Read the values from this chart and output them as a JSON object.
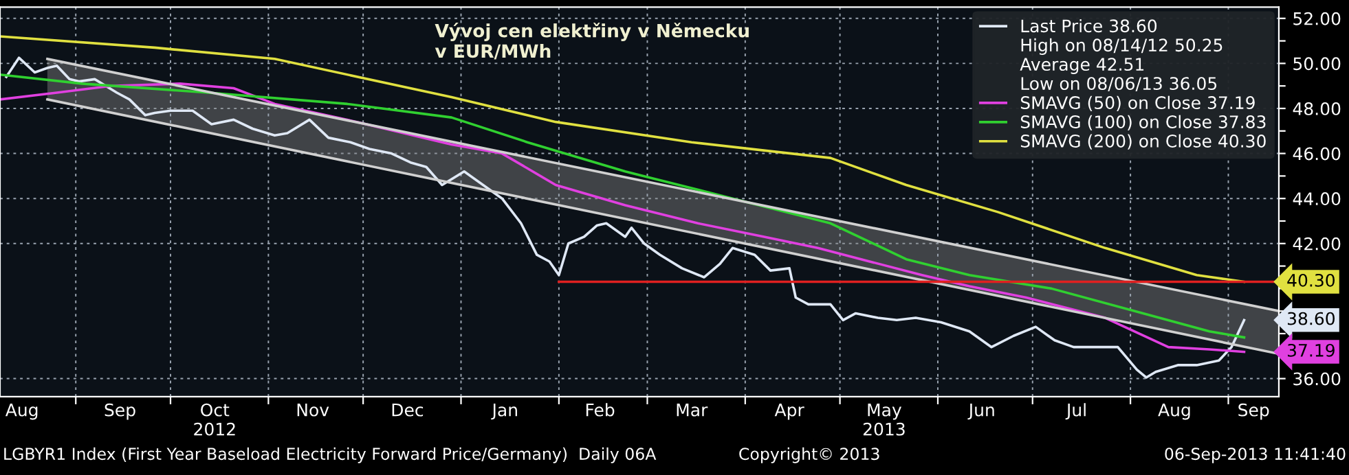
{
  "chart_data": {
    "type": "line",
    "title": "Vývoj cen elektřiny v Německu\nv EUR/MWh",
    "series": [
      {
        "name": "Last Price 38.60",
        "color": "#dfe8f5",
        "x": [
          "2012-08-10",
          "2012-08-14",
          "2012-08-19",
          "2012-08-23",
          "2012-08-26",
          "2012-08-30",
          "2012-09-02",
          "2012-09-07",
          "2012-09-14",
          "2012-09-18",
          "2012-09-23",
          "2012-09-26",
          "2012-10-01",
          "2012-10-08",
          "2012-10-14",
          "2012-10-21",
          "2012-10-27",
          "2012-11-03",
          "2012-11-07",
          "2012-11-14",
          "2012-11-20",
          "2012-11-27",
          "2012-12-03",
          "2012-12-10",
          "2012-12-16",
          "2012-12-21",
          "2012-12-26",
          "2013-01-02",
          "2013-01-07",
          "2013-01-14",
          "2013-01-20",
          "2013-01-25",
          "2013-01-29",
          "2013-02-01",
          "2013-02-04",
          "2013-02-09",
          "2013-02-13",
          "2013-02-16",
          "2013-02-22",
          "2013-02-24",
          "2013-02-28",
          "2013-03-05",
          "2013-03-12",
          "2013-03-19",
          "2013-03-24",
          "2013-03-28",
          "2013-04-04",
          "2013-04-09",
          "2013-04-15",
          "2013-04-17",
          "2013-04-21",
          "2013-04-28",
          "2013-05-02",
          "2013-05-06",
          "2013-05-13",
          "2013-05-19",
          "2013-05-25",
          "2013-06-02",
          "2013-06-11",
          "2013-06-18",
          "2013-06-25",
          "2013-07-02",
          "2013-07-08",
          "2013-07-14",
          "2013-07-28",
          "2013-08-03",
          "2013-08-06",
          "2013-08-09",
          "2013-08-16",
          "2013-08-22",
          "2013-08-29",
          "2013-09-02",
          "2013-09-06"
        ],
        "values": [
          49.4,
          50.25,
          49.6,
          49.8,
          49.9,
          49.3,
          49.2,
          49.3,
          48.7,
          48.4,
          47.7,
          47.8,
          47.9,
          47.9,
          47.3,
          47.5,
          47.1,
          46.8,
          46.9,
          47.5,
          46.7,
          46.5,
          46.2,
          46.0,
          45.6,
          45.4,
          44.6,
          45.2,
          44.7,
          44.0,
          42.9,
          41.5,
          41.2,
          40.6,
          42.0,
          42.3,
          42.8,
          42.9,
          42.3,
          42.7,
          42.0,
          41.5,
          40.9,
          40.5,
          41.1,
          41.8,
          41.5,
          40.8,
          40.9,
          39.6,
          39.3,
          39.3,
          38.6,
          38.9,
          38.7,
          38.6,
          38.7,
          38.5,
          38.1,
          37.4,
          37.9,
          38.3,
          37.7,
          37.4,
          37.4,
          36.4,
          36.05,
          36.3,
          36.6,
          36.6,
          36.8,
          37.4,
          38.6
        ]
      },
      {
        "name": "SMAVG (50) on Close 37.19",
        "color": "#e040e0",
        "x": [
          "2012-08-08",
          "2012-08-26",
          "2012-09-12",
          "2012-10-04",
          "2012-10-21",
          "2012-11-03",
          "2012-11-29",
          "2012-12-29",
          "2013-01-14",
          "2013-01-31",
          "2013-02-22",
          "2013-03-17",
          "2013-04-07",
          "2013-04-24",
          "2013-05-27",
          "2013-06-11",
          "2013-06-29",
          "2013-07-24",
          "2013-08-13",
          "2013-08-26",
          "2013-09-06"
        ],
        "values": [
          48.4,
          48.7,
          49.0,
          49.1,
          48.9,
          48.2,
          47.4,
          46.4,
          46.0,
          44.6,
          43.7,
          42.9,
          42.3,
          41.8,
          40.6,
          40.1,
          39.6,
          38.7,
          37.4,
          37.3,
          37.19
        ]
      },
      {
        "name": "SMAVG (100) on Close 37.83",
        "color": "#30d030",
        "x": [
          "2012-08-08",
          "2012-09-03",
          "2012-10-13",
          "2012-11-26",
          "2012-12-29",
          "2013-01-22",
          "2013-02-22",
          "2013-03-28",
          "2013-04-28",
          "2013-05-22",
          "2013-06-11",
          "2013-07-07",
          "2013-08-05",
          "2013-08-26",
          "2013-09-06"
        ],
        "values": [
          49.5,
          49.1,
          48.7,
          48.2,
          47.6,
          46.5,
          45.2,
          44.0,
          42.9,
          41.3,
          40.6,
          40.0,
          38.9,
          38.1,
          37.83
        ]
      },
      {
        "name": "SMAVG (200) on Close 40.30",
        "color": "#e0e040",
        "x": [
          "2012-08-08",
          "2012-09-26",
          "2012-11-03",
          "2012-12-29",
          "2013-01-31",
          "2013-03-15",
          "2013-04-28",
          "2013-05-22",
          "2013-06-20",
          "2013-07-24",
          "2013-08-22",
          "2013-09-06"
        ],
        "values": [
          51.2,
          50.7,
          50.2,
          48.5,
          47.4,
          46.5,
          45.8,
          44.6,
          43.4,
          41.8,
          40.6,
          40.3
        ]
      },
      {
        "color": "#d0d0d0",
        "x": [
          "2012-08-23",
          "2013-09-17"
        ],
        "values": [
          null,
          null
        ],
        "lower": [
          48.4,
          37.1
        ],
        "upper": [
          50.2,
          39.0
        ]
      },
      {
        "color": "#e02020",
        "x": [
          "2013-02-01",
          "2013-09-17"
        ],
        "values": [
          40.3,
          40.3
        ]
      }
    ],
    "xlim": [
      "2012-08-08",
      "2013-09-17"
    ],
    "xticks": [
      {
        "value": "2012-09-01",
        "label": null
      },
      {
        "value": "2012-10-01",
        "label": null
      },
      {
        "value": "2012-11-01",
        "label": null
      },
      {
        "value": "2012-12-01",
        "label": null
      },
      {
        "value": "2013-01-01",
        "label": null
      },
      {
        "value": "2013-02-01",
        "label": null
      },
      {
        "value": "2013-03-01",
        "label": null
      },
      {
        "value": "2013-04-01",
        "label": null
      },
      {
        "value": "2013-05-01",
        "label": null
      },
      {
        "value": "2013-06-01",
        "label": null
      },
      {
        "value": "2013-07-01",
        "label": null
      },
      {
        "value": "2013-08-01",
        "label": null
      },
      {
        "value": "2013-09-01",
        "label": null
      },
      {
        "value": "2012-08-15",
        "label": "Aug"
      },
      {
        "value": "2012-09-15",
        "label": "Sep"
      },
      {
        "value": "2012-10-15",
        "label": "Oct\n2012"
      },
      {
        "value": "2012-11-15",
        "label": "Nov"
      },
      {
        "value": "2012-12-15",
        "label": "Dec"
      },
      {
        "value": "2013-01-15",
        "label": "Jan"
      },
      {
        "value": "2013-02-14",
        "label": "Feb"
      },
      {
        "value": "2013-03-15",
        "label": "Mar"
      },
      {
        "value": "2013-04-15",
        "label": "Apr"
      },
      {
        "value": "2013-05-15",
        "label": "May\n2013"
      },
      {
        "value": "2013-06-15",
        "label": "Jun"
      },
      {
        "value": "2013-07-15",
        "label": "Jul"
      },
      {
        "value": "2013-08-15",
        "label": "Aug"
      },
      {
        "value": "2013-09-09",
        "label": "Sep"
      }
    ],
    "ylim": [
      35.2,
      52.5
    ],
    "yticks": [
      {
        "value": 36,
        "label": "36.00"
      },
      {
        "value": 37,
        "label": null
      },
      {
        "value": 38,
        "label": null
      },
      {
        "value": 39,
        "label": null
      },
      {
        "value": 40,
        "label": null
      },
      {
        "value": 41,
        "label": null
      },
      {
        "value": 42,
        "label": "42.00"
      },
      {
        "value": 43,
        "label": null
      },
      {
        "value": 44,
        "label": "44.00"
      },
      {
        "value": 45,
        "label": null
      },
      {
        "value": 46,
        "label": "46.00"
      },
      {
        "value": 47,
        "label": null
      },
      {
        "value": 48,
        "label": "48.00"
      },
      {
        "value": 49,
        "label": null
      },
      {
        "value": 50,
        "label": "50.00"
      },
      {
        "value": 51,
        "label": null
      },
      {
        "value": 52,
        "label": "52.00"
      }
    ],
    "grid": true,
    "legend": "top right",
    "annotations": [
      "High on 08/14/12 50.25",
      "Average 42.51",
      "Low on 08/06/13 36.05",
      {
        "text": "40.30",
        "x": "2013-09-17",
        "y": 40.3
      },
      {
        "text": "38.60",
        "x": "2013-09-17",
        "y": 38.6
      },
      {
        "text": "37.19",
        "x": "2013-09-17",
        "y": 37.19
      },
      "LGBYR1 Index (First Year Baseload Electricity Forward Price/Germany)  Daily 06A",
      "Copyright© 2013",
      "06-Sep-2013 11:41:40"
    ]
  }
}
